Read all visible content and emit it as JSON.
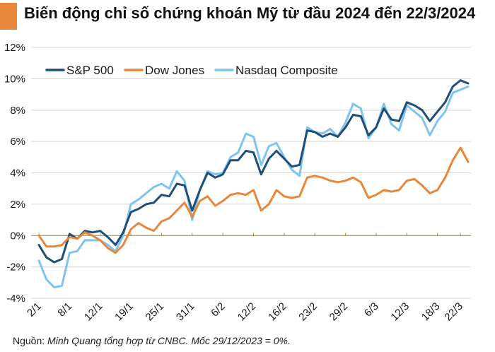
{
  "header": {
    "title": "Biến động chỉ số chứng khoán Mỹ từ đầu 2024 đến 22/3/2024",
    "accent_color": "#e8873a"
  },
  "footer": {
    "source_label": "Nguồn: ",
    "source_text": "Minh Quang tổng hợp từ CNBC. Mốc 29/12/2023 = 0%."
  },
  "chart_data": {
    "type": "line",
    "ylim": [
      -4,
      12
    ],
    "yticks": [
      -4,
      -2,
      0,
      2,
      4,
      6,
      8,
      10,
      12
    ],
    "ytick_format": "percent",
    "xtick_labels": [
      "2/1",
      "8/1",
      "12/1",
      "19/1",
      "25/1",
      "31/1",
      "6/2",
      "12/2",
      "16/2",
      "23/2",
      "29/2",
      "6/3",
      "12/3",
      "18/3",
      "22/3"
    ],
    "xtick_positions": [
      0,
      4,
      8,
      12,
      16,
      20,
      24,
      28,
      32,
      36,
      40,
      44,
      48,
      52,
      55
    ],
    "grid": "horizontal",
    "legend_position": "top-left",
    "zero_line_color": "#a59a4a",
    "series": [
      {
        "name": "S&P 500",
        "color": "#1f4e79",
        "values": [
          -0.6,
          -1.4,
          -1.7,
          -1.5,
          0.1,
          -0.2,
          0.3,
          0.2,
          0.3,
          -0.1,
          -0.6,
          0.2,
          1.5,
          1.7,
          2.0,
          2.1,
          2.6,
          2.5,
          3.3,
          3.2,
          1.6,
          2.9,
          4.0,
          3.7,
          3.9,
          4.8,
          4.8,
          5.4,
          5.3,
          3.9,
          4.9,
          5.4,
          4.9,
          4.4,
          4.5,
          6.7,
          6.6,
          6.3,
          6.5,
          6.3,
          6.9,
          7.7,
          7.6,
          6.4,
          6.9,
          8.1,
          7.4,
          7.3,
          8.5,
          8.3,
          8.0,
          7.3,
          7.9,
          8.5,
          9.5,
          9.9,
          9.7
        ]
      },
      {
        "name": "Dow Jones",
        "color": "#e8873a",
        "values": [
          0.0,
          -0.7,
          -0.7,
          -0.6,
          -0.1,
          -0.2,
          0.2,
          0.0,
          -0.3,
          -0.8,
          -1.1,
          -0.6,
          0.4,
          0.8,
          0.5,
          0.3,
          0.9,
          1.1,
          1.6,
          2.1,
          1.2,
          2.2,
          2.5,
          1.9,
          2.2,
          2.6,
          2.7,
          2.6,
          2.9,
          1.6,
          2.0,
          2.9,
          2.5,
          2.4,
          2.5,
          3.7,
          3.8,
          3.7,
          3.5,
          3.4,
          3.5,
          3.7,
          3.4,
          2.4,
          2.6,
          2.9,
          2.8,
          2.9,
          3.5,
          3.6,
          3.2,
          2.7,
          2.9,
          3.7,
          4.8,
          5.6,
          4.7
        ]
      },
      {
        "name": "Nasdaq Composite",
        "color": "#7ec4ee",
        "values": [
          -1.6,
          -2.8,
          -3.3,
          -3.2,
          -1.1,
          -1.0,
          -0.3,
          -0.3,
          -0.3,
          -0.6,
          -1.0,
          0.0,
          2.0,
          2.3,
          2.7,
          3.1,
          3.3,
          3.0,
          4.1,
          3.5,
          1.0,
          2.9,
          4.1,
          3.9,
          4.0,
          5.0,
          5.3,
          6.5,
          6.3,
          4.5,
          5.7,
          5.9,
          5.0,
          4.2,
          3.8,
          6.9,
          6.6,
          6.5,
          6.8,
          6.3,
          7.2,
          8.4,
          8.1,
          6.2,
          6.9,
          8.4,
          7.1,
          6.7,
          8.3,
          7.9,
          7.5,
          6.4,
          7.3,
          7.9,
          9.1,
          9.3,
          9.5
        ]
      }
    ]
  }
}
